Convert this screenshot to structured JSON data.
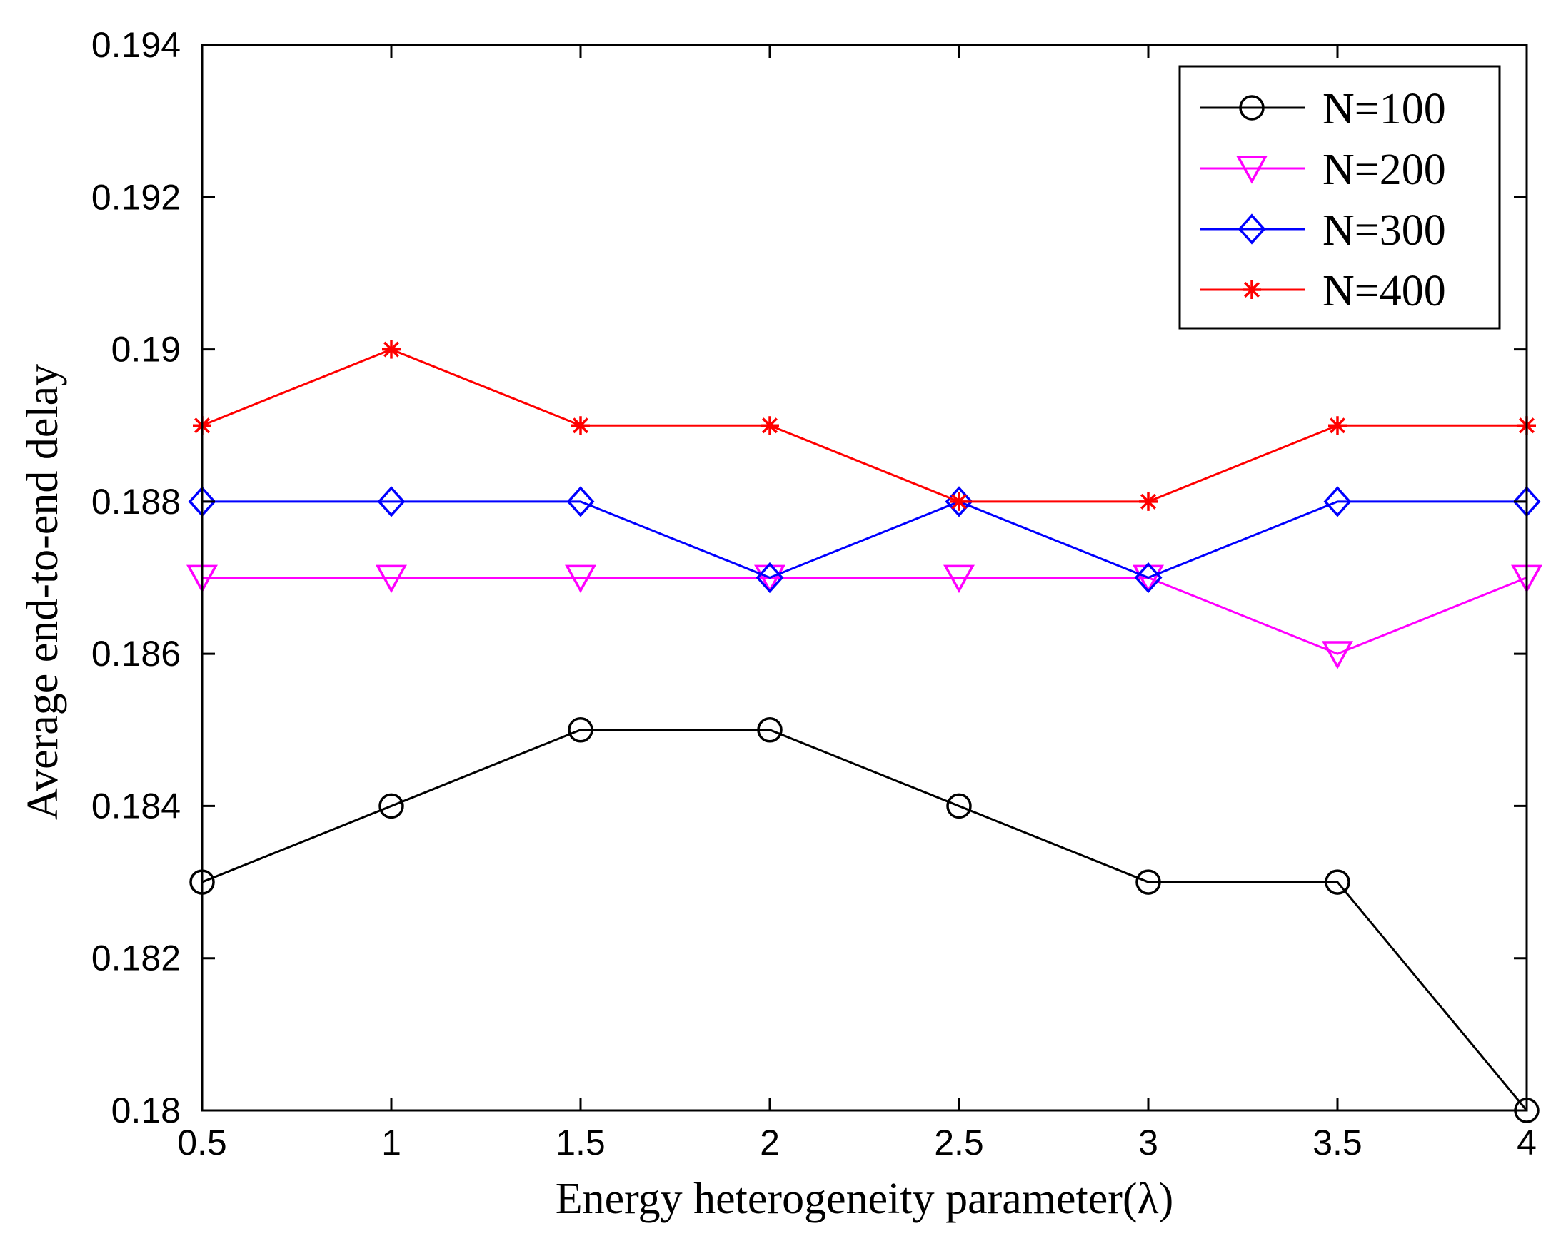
{
  "chart_data": {
    "type": "line",
    "title": "",
    "xlabel": "Energy heterogeneity parameter(λ)",
    "ylabel": "Average end-to-end delay",
    "x": [
      0.5,
      1,
      1.5,
      2,
      2.5,
      3,
      3.5,
      4
    ],
    "xlim": [
      0.5,
      4
    ],
    "ylim": [
      0.18,
      0.194
    ],
    "xticks": [
      "0.5",
      "1",
      "1.5",
      "2",
      "2.5",
      "3",
      "3.5",
      "4"
    ],
    "yticks": [
      "0.18",
      "0.182",
      "0.184",
      "0.186",
      "0.188",
      "0.19",
      "0.192",
      "0.194"
    ],
    "grid": false,
    "legend_position": "top-right",
    "series": [
      {
        "name": "N=100",
        "marker": "circle",
        "color": "#000000",
        "values": [
          0.183,
          0.184,
          0.185,
          0.185,
          0.184,
          0.183,
          0.183,
          0.18
        ]
      },
      {
        "name": "N=200",
        "marker": "triangle-down",
        "color": "#ff00ff",
        "values": [
          0.187,
          0.187,
          0.187,
          0.187,
          0.187,
          0.187,
          0.186,
          0.187
        ]
      },
      {
        "name": "N=300",
        "marker": "diamond",
        "color": "#0000ff",
        "values": [
          0.188,
          0.188,
          0.188,
          0.187,
          0.188,
          0.187,
          0.188,
          0.188
        ]
      },
      {
        "name": "N=400",
        "marker": "asterisk",
        "color": "#ff0000",
        "values": [
          0.189,
          0.19,
          0.189,
          0.189,
          0.188,
          0.188,
          0.189,
          0.189
        ]
      }
    ]
  }
}
